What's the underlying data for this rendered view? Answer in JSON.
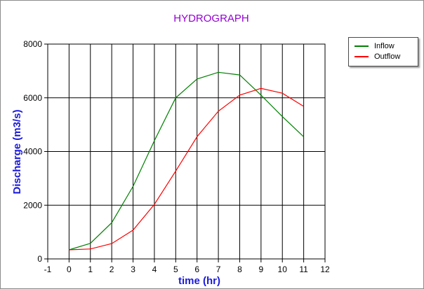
{
  "chart_data": {
    "type": "line",
    "title": "HYDROGRAPH",
    "xlabel": "time (hr)",
    "ylabel": "Discharge (m3/s)",
    "xlim": [
      -1,
      12
    ],
    "ylim": [
      0,
      8000
    ],
    "xticks": [
      -1,
      0,
      1,
      2,
      3,
      4,
      5,
      6,
      7,
      8,
      9,
      10,
      11,
      12
    ],
    "yticks": [
      0,
      2000,
      4000,
      6000,
      8000
    ],
    "grid": true,
    "legend_position": "top-right outside",
    "x": [
      0,
      1,
      2,
      3,
      4,
      5,
      6,
      7,
      8,
      9,
      10,
      11
    ],
    "series": [
      {
        "name": "Inflow",
        "color": "#008000",
        "values": [
          340,
          580,
          1350,
          2700,
          4400,
          6000,
          6700,
          6950,
          6850,
          6100,
          5300,
          4550
        ]
      },
      {
        "name": "Outflow",
        "color": "#ff0000",
        "values": [
          340,
          370,
          570,
          1070,
          2030,
          3270,
          4550,
          5500,
          6100,
          6350,
          6170,
          5680
        ]
      }
    ],
    "title_color": "#9400d3",
    "label_color": "#1a1adc"
  }
}
